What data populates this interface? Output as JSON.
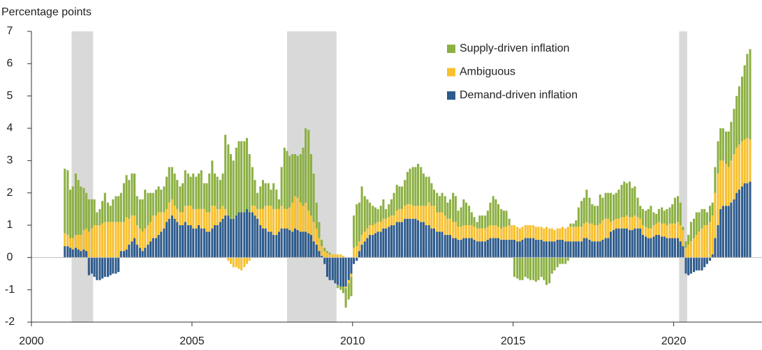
{
  "chart_data": {
    "type": "stacked_bar",
    "y_axis_label": "Percentage points",
    "ylim": [
      -2,
      7
    ],
    "yticks": [
      -2,
      -1,
      0,
      1,
      2,
      3,
      4,
      5,
      6,
      7
    ],
    "xlim": [
      2000,
      2022.75
    ],
    "xticks": [
      2000,
      2005,
      2010,
      2015,
      2020
    ],
    "grid": false,
    "legend": "top-right",
    "shaded_periods": [
      [
        2001.25,
        2001.92
      ],
      [
        2007.96,
        2009.5
      ],
      [
        2020.17,
        2020.42
      ]
    ],
    "shade_color": "#d9d9d9",
    "x": [
      2001.04,
      2001.13,
      2001.21,
      2001.29,
      2001.38,
      2001.46,
      2001.54,
      2001.63,
      2001.71,
      2001.79,
      2001.88,
      2001.96,
      2002.04,
      2002.13,
      2002.21,
      2002.29,
      2002.38,
      2002.46,
      2002.54,
      2002.63,
      2002.71,
      2002.79,
      2002.88,
      2002.96,
      2003.04,
      2003.13,
      2003.21,
      2003.29,
      2003.38,
      2003.46,
      2003.54,
      2003.63,
      2003.71,
      2003.79,
      2003.88,
      2003.96,
      2004.04,
      2004.13,
      2004.21,
      2004.29,
      2004.38,
      2004.46,
      2004.54,
      2004.63,
      2004.71,
      2004.79,
      2004.88,
      2004.96,
      2005.04,
      2005.13,
      2005.21,
      2005.29,
      2005.38,
      2005.46,
      2005.54,
      2005.63,
      2005.71,
      2005.79,
      2005.88,
      2005.96,
      2006.04,
      2006.13,
      2006.21,
      2006.29,
      2006.38,
      2006.46,
      2006.54,
      2006.63,
      2006.71,
      2006.79,
      2006.88,
      2006.96,
      2007.04,
      2007.13,
      2007.21,
      2007.29,
      2007.38,
      2007.46,
      2007.54,
      2007.63,
      2007.71,
      2007.79,
      2007.88,
      2007.96,
      2008.04,
      2008.13,
      2008.21,
      2008.29,
      2008.38,
      2008.46,
      2008.54,
      2008.63,
      2008.71,
      2008.79,
      2008.88,
      2008.96,
      2009.04,
      2009.13,
      2009.21,
      2009.29,
      2009.38,
      2009.46,
      2009.54,
      2009.63,
      2009.71,
      2009.79,
      2009.88,
      2009.96,
      2010.04,
      2010.13,
      2010.21,
      2010.29,
      2010.38,
      2010.46,
      2010.54,
      2010.63,
      2010.71,
      2010.79,
      2010.88,
      2010.96,
      2011.04,
      2011.13,
      2011.21,
      2011.29,
      2011.38,
      2011.46,
      2011.54,
      2011.63,
      2011.71,
      2011.79,
      2011.88,
      2011.96,
      2012.04,
      2012.13,
      2012.21,
      2012.29,
      2012.38,
      2012.46,
      2012.54,
      2012.63,
      2012.71,
      2012.79,
      2012.88,
      2012.96,
      2013.04,
      2013.13,
      2013.21,
      2013.29,
      2013.38,
      2013.46,
      2013.54,
      2013.63,
      2013.71,
      2013.79,
      2013.88,
      2013.96,
      2014.04,
      2014.13,
      2014.21,
      2014.29,
      2014.38,
      2014.46,
      2014.54,
      2014.63,
      2014.71,
      2014.79,
      2014.88,
      2014.96,
      2015.04,
      2015.13,
      2015.21,
      2015.29,
      2015.38,
      2015.46,
      2015.54,
      2015.63,
      2015.71,
      2015.79,
      2015.88,
      2015.96,
      2016.04,
      2016.13,
      2016.21,
      2016.29,
      2016.38,
      2016.46,
      2016.54,
      2016.63,
      2016.71,
      2016.79,
      2016.88,
      2016.96,
      2017.04,
      2017.13,
      2017.21,
      2017.29,
      2017.38,
      2017.46,
      2017.54,
      2017.63,
      2017.71,
      2017.79,
      2017.88,
      2017.96,
      2018.04,
      2018.13,
      2018.21,
      2018.29,
      2018.38,
      2018.46,
      2018.54,
      2018.63,
      2018.71,
      2018.79,
      2018.88,
      2018.96,
      2019.04,
      2019.13,
      2019.21,
      2019.29,
      2019.38,
      2019.46,
      2019.54,
      2019.63,
      2019.71,
      2019.79,
      2019.88,
      2019.96,
      2020.04,
      2020.13,
      2020.21,
      2020.29,
      2020.38,
      2020.46,
      2020.54,
      2020.63,
      2020.71,
      2020.79,
      2020.88,
      2020.96,
      2021.04,
      2021.13,
      2021.21,
      2021.29,
      2021.38,
      2021.46,
      2021.54,
      2021.63,
      2021.71,
      2021.79,
      2021.88,
      2021.96,
      2022.04,
      2022.13,
      2022.21,
      2022.29,
      2022.38
    ],
    "series": [
      {
        "name": "Demand-driven inflation",
        "color": "#2e5b8c",
        "values": [
          0.35,
          0.35,
          0.3,
          0.25,
          0.3,
          0.25,
          0.2,
          0.25,
          0.2,
          -0.55,
          -0.5,
          -0.6,
          -0.7,
          -0.7,
          -0.65,
          -0.6,
          -0.6,
          -0.55,
          -0.5,
          -0.5,
          -0.45,
          0.2,
          0.2,
          0.25,
          0.4,
          0.5,
          0.6,
          0.4,
          0.3,
          0.2,
          0.3,
          0.4,
          0.5,
          0.6,
          0.6,
          0.7,
          0.8,
          0.9,
          1.1,
          1.2,
          1.3,
          1.2,
          1.1,
          1.0,
          1.0,
          1.1,
          1.0,
          1.0,
          0.9,
          0.9,
          1.0,
          0.9,
          0.9,
          0.8,
          0.8,
          0.9,
          1.0,
          1.0,
          1.1,
          1.2,
          1.3,
          1.3,
          1.2,
          1.2,
          1.3,
          1.4,
          1.4,
          1.4,
          1.5,
          1.4,
          1.4,
          1.3,
          1.2,
          1.0,
          0.9,
          0.9,
          0.8,
          0.8,
          0.7,
          0.7,
          0.8,
          0.9,
          0.9,
          0.9,
          0.85,
          0.8,
          0.9,
          0.85,
          0.8,
          0.8,
          0.8,
          0.75,
          0.7,
          0.5,
          0.4,
          0.2,
          0.05,
          -0.2,
          -0.6,
          -0.7,
          -0.7,
          -0.8,
          -0.85,
          -0.9,
          -0.9,
          -0.9,
          -0.7,
          -0.5,
          -0.2,
          -0.1,
          0.2,
          0.4,
          0.5,
          0.6,
          0.7,
          0.7,
          0.75,
          0.8,
          0.8,
          0.9,
          0.9,
          0.95,
          1.0,
          1.0,
          1.1,
          1.1,
          1.1,
          1.2,
          1.2,
          1.2,
          1.2,
          1.2,
          1.15,
          1.1,
          1.1,
          1.0,
          1.0,
          0.9,
          0.9,
          0.8,
          0.8,
          0.8,
          0.7,
          0.7,
          0.7,
          0.6,
          0.6,
          0.55,
          0.55,
          0.6,
          0.6,
          0.6,
          0.6,
          0.55,
          0.5,
          0.5,
          0.5,
          0.5,
          0.55,
          0.6,
          0.6,
          0.6,
          0.6,
          0.55,
          0.55,
          0.55,
          0.55,
          0.55,
          0.55,
          0.5,
          0.5,
          0.55,
          0.6,
          0.6,
          0.6,
          0.6,
          0.55,
          0.55,
          0.55,
          0.5,
          0.5,
          0.5,
          0.5,
          0.5,
          0.55,
          0.55,
          0.55,
          0.5,
          0.5,
          0.5,
          0.5,
          0.5,
          0.5,
          0.5,
          0.6,
          0.6,
          0.55,
          0.5,
          0.5,
          0.5,
          0.5,
          0.55,
          0.6,
          0.6,
          0.8,
          0.85,
          0.9,
          0.9,
          0.9,
          0.9,
          0.9,
          0.85,
          0.85,
          0.9,
          0.9,
          0.9,
          0.7,
          0.65,
          0.6,
          0.6,
          0.65,
          0.7,
          0.7,
          0.65,
          0.65,
          0.6,
          0.6,
          0.6,
          0.6,
          0.6,
          0.5,
          0.35,
          -0.5,
          -0.55,
          -0.5,
          -0.45,
          -0.4,
          -0.4,
          -0.4,
          -0.3,
          -0.2,
          -0.1,
          0.1,
          0.6,
          1.0,
          1.5,
          1.6,
          1.6,
          1.6,
          1.7,
          1.8,
          2.0,
          2.1,
          2.2,
          2.3,
          2.3,
          2.35
        ]
      },
      {
        "name": "Ambiguous",
        "color": "#f7c02e",
        "values": [
          0.4,
          0.35,
          0.3,
          0.35,
          0.4,
          0.45,
          0.5,
          0.6,
          0.7,
          0.8,
          0.9,
          1.0,
          1.0,
          1.0,
          1.05,
          1.1,
          1.1,
          1.1,
          1.1,
          1.1,
          1.1,
          0.9,
          0.9,
          1.0,
          0.8,
          0.8,
          0.7,
          0.6,
          0.6,
          0.6,
          0.6,
          0.6,
          0.6,
          0.7,
          0.7,
          0.7,
          0.6,
          0.5,
          0.4,
          0.5,
          0.5,
          0.4,
          0.4,
          0.4,
          0.4,
          0.5,
          0.6,
          0.6,
          0.6,
          0.6,
          0.5,
          0.6,
          0.6,
          0.6,
          0.6,
          0.7,
          0.6,
          0.5,
          0.4,
          0.4,
          0.2,
          -0.1,
          -0.2,
          -0.3,
          -0.3,
          -0.35,
          -0.4,
          -0.3,
          -0.2,
          -0.1,
          0.2,
          0.3,
          0.3,
          0.5,
          0.6,
          0.7,
          0.8,
          0.8,
          0.8,
          0.8,
          0.7,
          0.7,
          0.6,
          0.6,
          0.7,
          0.9,
          1.0,
          1.0,
          0.9,
          0.8,
          0.9,
          0.7,
          0.6,
          0.6,
          0.5,
          0.4,
          0.3,
          0.2,
          0.15,
          0.1,
          0.1,
          0.1,
          0.1,
          0.1,
          0.05,
          -0.05,
          -0.1,
          -0.1,
          0.3,
          0.35,
          0.3,
          0.3,
          0.3,
          0.3,
          0.3,
          0.3,
          0.3,
          0.3,
          0.3,
          0.3,
          0.3,
          0.3,
          0.3,
          0.3,
          0.35,
          0.4,
          0.4,
          0.4,
          0.45,
          0.45,
          0.4,
          0.4,
          0.45,
          0.5,
          0.5,
          0.6,
          0.7,
          0.7,
          0.7,
          0.6,
          0.6,
          0.6,
          0.6,
          0.5,
          0.5,
          0.5,
          0.5,
          0.4,
          0.4,
          0.4,
          0.4,
          0.4,
          0.4,
          0.4,
          0.4,
          0.4,
          0.4,
          0.4,
          0.4,
          0.4,
          0.4,
          0.4,
          0.35,
          0.35,
          0.4,
          0.4,
          0.45,
          0.45,
          0.45,
          0.45,
          0.4,
          0.4,
          0.4,
          0.4,
          0.4,
          0.4,
          0.4,
          0.4,
          0.4,
          0.4,
          0.45,
          0.4,
          0.4,
          0.35,
          0.35,
          0.35,
          0.4,
          0.4,
          0.45,
          0.45,
          0.45,
          0.45,
          0.45,
          0.45,
          0.45,
          0.5,
          0.5,
          0.55,
          0.5,
          0.5,
          0.55,
          0.6,
          0.6,
          0.6,
          0.3,
          0.3,
          0.3,
          0.3,
          0.35,
          0.35,
          0.4,
          0.4,
          0.4,
          0.4,
          0.35,
          0.3,
          0.3,
          0.3,
          0.3,
          0.3,
          0.35,
          0.35,
          0.4,
          0.4,
          0.4,
          0.4,
          0.45,
          0.45,
          0.45,
          0.5,
          0.5,
          0.5,
          0.3,
          0.4,
          0.5,
          0.6,
          0.7,
          0.8,
          0.9,
          1.0,
          1.0,
          1.1,
          1.2,
          1.4,
          1.6,
          1.5,
          1.4,
          1.3,
          1.2,
          1.3,
          1.4,
          1.4,
          1.4,
          1.4,
          1.35,
          1.4,
          1.3
        ]
      },
      {
        "name": "Supply-driven inflation",
        "color": "#8cb043",
        "values": [
          2.0,
          2.0,
          1.5,
          1.6,
          1.9,
          1.7,
          1.5,
          1.3,
          1.1,
          1.0,
          0.9,
          0.8,
          0.4,
          0.5,
          0.7,
          0.9,
          0.6,
          0.5,
          0.7,
          0.8,
          0.8,
          0.9,
          1.2,
          1.3,
          1.2,
          1.3,
          1.3,
          0.9,
          0.9,
          1.0,
          1.2,
          1.0,
          0.9,
          0.7,
          0.8,
          0.8,
          0.7,
          0.8,
          1.0,
          1.1,
          1.0,
          1.0,
          0.9,
          0.8,
          0.9,
          1.1,
          1.0,
          0.9,
          1.1,
          1.0,
          1.1,
          1.2,
          0.8,
          0.9,
          1.2,
          1.4,
          1.0,
          1.0,
          0.9,
          1.0,
          2.3,
          2.2,
          2.0,
          1.8,
          2.1,
          2.2,
          2.2,
          2.2,
          2.2,
          1.8,
          1.2,
          0.8,
          0.5,
          0.7,
          0.9,
          0.7,
          0.7,
          0.5,
          0.8,
          0.6,
          0.3,
          1.2,
          1.9,
          1.8,
          1.6,
          1.5,
          1.3,
          1.3,
          1.5,
          1.8,
          2.3,
          2.5,
          1.9,
          1.5,
          0.8,
          0.5,
          0.2,
          0.1,
          0.05,
          0.05,
          0,
          0,
          -0.1,
          -0.1,
          -0.2,
          -0.6,
          -0.5,
          -0.6,
          1.0,
          1.3,
          1.2,
          1.5,
          1.1,
          0.9,
          0.7,
          0.6,
          0.5,
          0.4,
          0.5,
          0.6,
          0.3,
          0.4,
          0.5,
          0.7,
          0.8,
          0.7,
          0.7,
          0.8,
          1.0,
          1.1,
          1.2,
          1.2,
          1.3,
          1.2,
          1.0,
          0.9,
          0.8,
          0.7,
          0.5,
          0.6,
          0.5,
          0.6,
          0.6,
          0.5,
          0.6,
          0.9,
          0.8,
          0.5,
          0.6,
          0.8,
          0.7,
          0.6,
          0.4,
          0.3,
          0.2,
          0.4,
          0.4,
          0.4,
          0.5,
          0.7,
          0.9,
          0.8,
          0.7,
          0.6,
          0.5,
          0.5,
          0.2,
          0.0,
          -0.6,
          -0.65,
          -0.7,
          -0.7,
          -0.6,
          -0.65,
          -0.7,
          -0.7,
          -0.75,
          -0.7,
          -0.6,
          -0.7,
          -0.85,
          -0.8,
          -0.5,
          -0.4,
          -0.3,
          -0.2,
          -0.2,
          -0.2,
          -0.1,
          0.1,
          0.1,
          0.2,
          0.6,
          0.8,
          0.8,
          1.0,
          0.8,
          0.6,
          0.6,
          0.6,
          0.9,
          0.7,
          0.8,
          0.8,
          0.9,
          0.8,
          0.8,
          0.9,
          1.0,
          1.1,
          1.0,
          1.1,
          0.9,
          0.9,
          0.6,
          0.4,
          0.5,
          0.5,
          0.6,
          0.7,
          0.4,
          0.3,
          0.4,
          0.5,
          0.4,
          0.5,
          0.5,
          0.6,
          0.8,
          0.8,
          0.7,
          0.1,
          0.2,
          0.3,
          0.6,
          0.6,
          0.7,
          0.6,
          0.6,
          0.5,
          0.4,
          0.5,
          0.4,
          0.8,
          1.0,
          1.0,
          1.0,
          1.0,
          1.1,
          1.2,
          1.4,
          1.6,
          1.8,
          2.0,
          2.3,
          2.6,
          2.8
        ]
      }
    ]
  }
}
